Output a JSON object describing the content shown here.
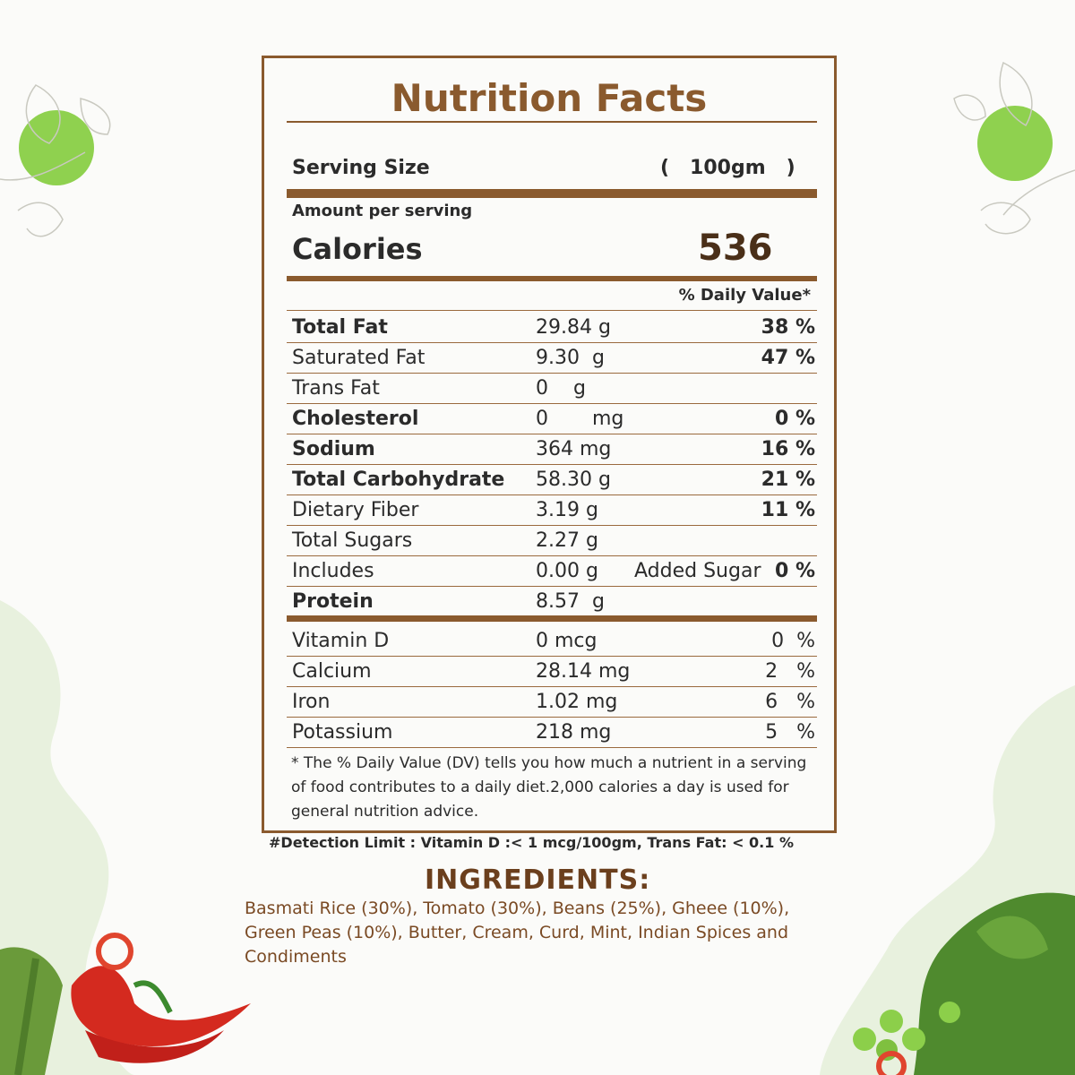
{
  "label": {
    "title": "Nutrition Facts",
    "serving_size_label": "Serving Size",
    "serving_size_value": "(   100gm   )",
    "amount_per_serving": "Amount per serving",
    "calories_label": "Calories",
    "calories_value": "536",
    "daily_value_header": "% Daily Value*",
    "nutrients": [
      {
        "name": "Total Fat",
        "amount": "29.84 g",
        "dv": "38 %"
      },
      {
        "name": "Saturated Fat",
        "amount": "9.30  g",
        "dv": "47 %"
      },
      {
        "name": "Trans Fat",
        "amount": "0    g",
        "dv": ""
      },
      {
        "name": "Cholesterol",
        "amount": "0       mg",
        "dv": "0 %"
      },
      {
        "name": "Sodium",
        "amount": "364 mg",
        "dv": "16 %"
      },
      {
        "name": "Total Carbohydrate",
        "amount": "58.30 g",
        "dv": "21 %"
      },
      {
        "name": "Dietary Fiber",
        "amount": "3.19 g",
        "dv": "11 %"
      },
      {
        "name": "Total Sugars",
        "amount": "2.27 g",
        "dv": ""
      },
      {
        "name": "Includes",
        "amount": "0.00 g",
        "extra": "Added Sugar",
        "dv": "0 %"
      },
      {
        "name": "Protein",
        "amount": "8.57  g",
        "dv": ""
      }
    ],
    "vitamins": [
      {
        "name": "Vitamin D",
        "amount": "0 mcg",
        "dv": "0  %"
      },
      {
        "name": "Calcium",
        "amount": "28.14 mg",
        "dv": "2   %"
      },
      {
        "name": "Iron",
        "amount": "1.02 mg",
        "dv": "6   %"
      },
      {
        "name": "Potassium",
        "amount": "218 mg",
        "dv": "5   %"
      }
    ],
    "footnote": "* The % Daily Value (DV) tells you how much a nutrient in a serving of food contributes to a daily diet.2,000 calories a day is used for general nutrition advice."
  },
  "detection_limit": "#Detection Limit : Vitamin D :< 1 mcg/100gm, Trans Fat: < 0.1 %",
  "ingredients": {
    "title": "INGREDIENTS:",
    "text": "Basmati Rice (30%), Tomato (30%), Beans (25%), Gheee (10%), Green Peas (10%), Butter, Cream, Curd, Mint, Indian Spices and Condiments"
  },
  "colors": {
    "brown": "#8a5a2e",
    "green_circle": "#8fd14f",
    "pale_green": "#e3efd8"
  },
  "icons": [
    "leaf-circle-left-icon",
    "leaf-circle-right-icon",
    "chili-pepper-icon",
    "green-peas-icon"
  ]
}
